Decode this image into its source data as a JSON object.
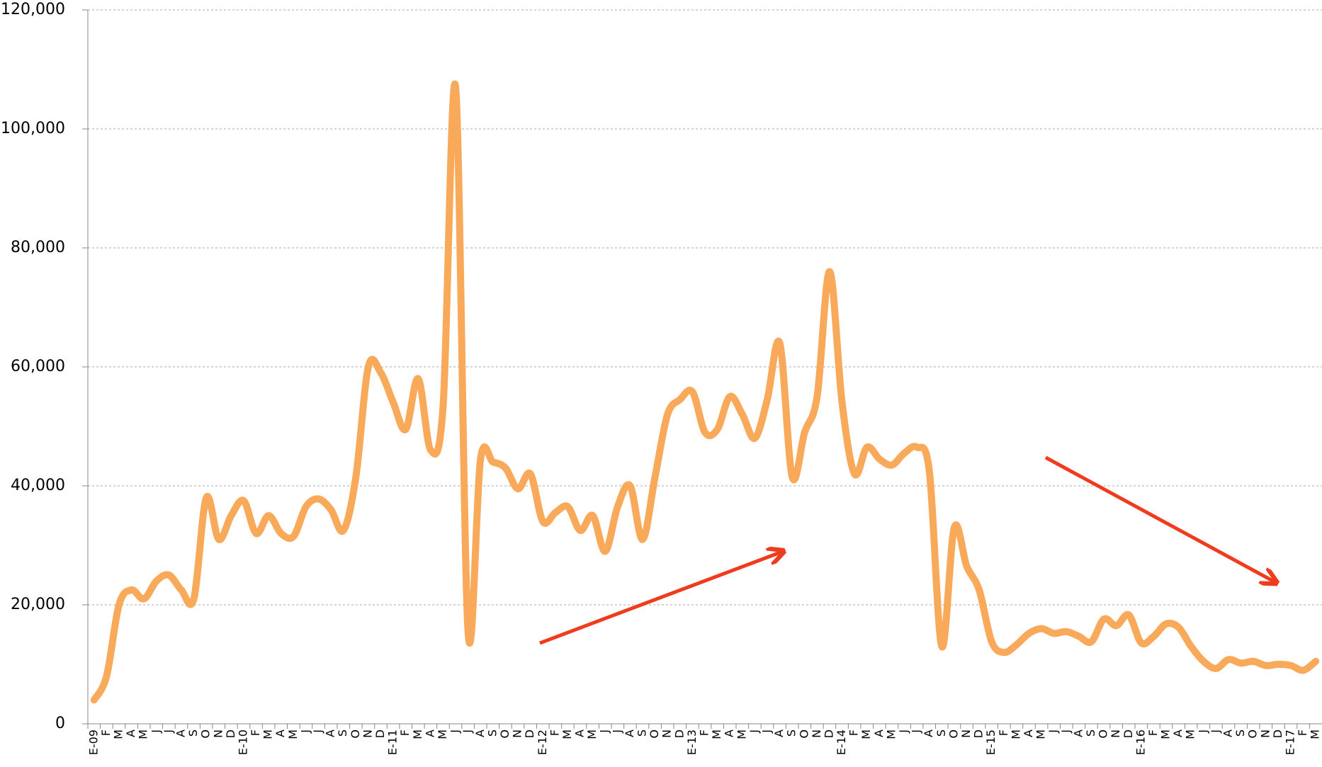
{
  "chart_data": {
    "type": "line",
    "categories": [
      "E-09",
      "F",
      "M",
      "A",
      "M",
      "J",
      "J",
      "A",
      "S",
      "O",
      "N",
      "D",
      "E-10",
      "F",
      "M",
      "A",
      "M",
      "J",
      "J",
      "A",
      "S",
      "O",
      "N",
      "D",
      "E-11",
      "F",
      "M",
      "A",
      "M",
      "J",
      "J",
      "A",
      "S",
      "O",
      "N",
      "D",
      "E-12",
      "F",
      "M",
      "A",
      "M",
      "J",
      "J",
      "A",
      "S",
      "O",
      "N",
      "D",
      "E-13",
      "F",
      "M",
      "A",
      "M",
      "J",
      "J",
      "A",
      "S",
      "O",
      "N",
      "D",
      "E-14",
      "F",
      "M",
      "A",
      "M",
      "J",
      "J",
      "A",
      "S",
      "O",
      "N",
      "D",
      "E-15",
      "F",
      "M",
      "A",
      "M",
      "J",
      "J",
      "A",
      "S",
      "O",
      "N",
      "D",
      "E-16",
      "F",
      "M",
      "A",
      "M",
      "J",
      "J",
      "A",
      "S",
      "O",
      "N",
      "D",
      "E-17",
      "F",
      "M"
    ],
    "series": [
      {
        "color": "#f9a95a",
        "values": [
          4000,
          8000,
          20000,
          22500,
          21000,
          24000,
          25000,
          22500,
          21000,
          38000,
          31000,
          35000,
          37500,
          32000,
          35000,
          32000,
          31500,
          36500,
          37800,
          36000,
          32500,
          41500,
          60000,
          59000,
          54000,
          49500,
          58000,
          46000,
          53500,
          107000,
          15500,
          44500,
          44000,
          43000,
          39500,
          42000,
          34000,
          35500,
          36500,
          32500,
          35000,
          29000,
          36500,
          40000,
          31000,
          41500,
          52000,
          54500,
          55800,
          49000,
          49500,
          55000,
          52000,
          48000,
          54500,
          64000,
          41500,
          49000,
          55000,
          76000,
          54000,
          42000,
          46500,
          44500,
          43500,
          45500,
          46500,
          42500,
          13000,
          33000,
          26500,
          22500,
          13800,
          12000,
          13300,
          15200,
          16000,
          15200,
          15500,
          14700,
          13800,
          17600,
          16500,
          18300,
          13600,
          14700,
          16800,
          16200,
          13000,
          10500,
          9300,
          10800,
          10200,
          10500,
          9800,
          10000,
          9800,
          9000,
          10500
        ]
      }
    ],
    "ylim": [
      0,
      120000
    ],
    "yticks": [
      0,
      {
        "value": 20000,
        "label": "20,000"
      },
      {
        "value": 40000,
        "label": "40,000"
      },
      {
        "value": 60000,
        "label": "60,000"
      },
      {
        "value": 80000,
        "label": "80,000"
      },
      {
        "value": 100000,
        "label": "100,000"
      },
      {
        "value": 120000,
        "label": "120,000"
      }
    ],
    "grid": true
  }
}
